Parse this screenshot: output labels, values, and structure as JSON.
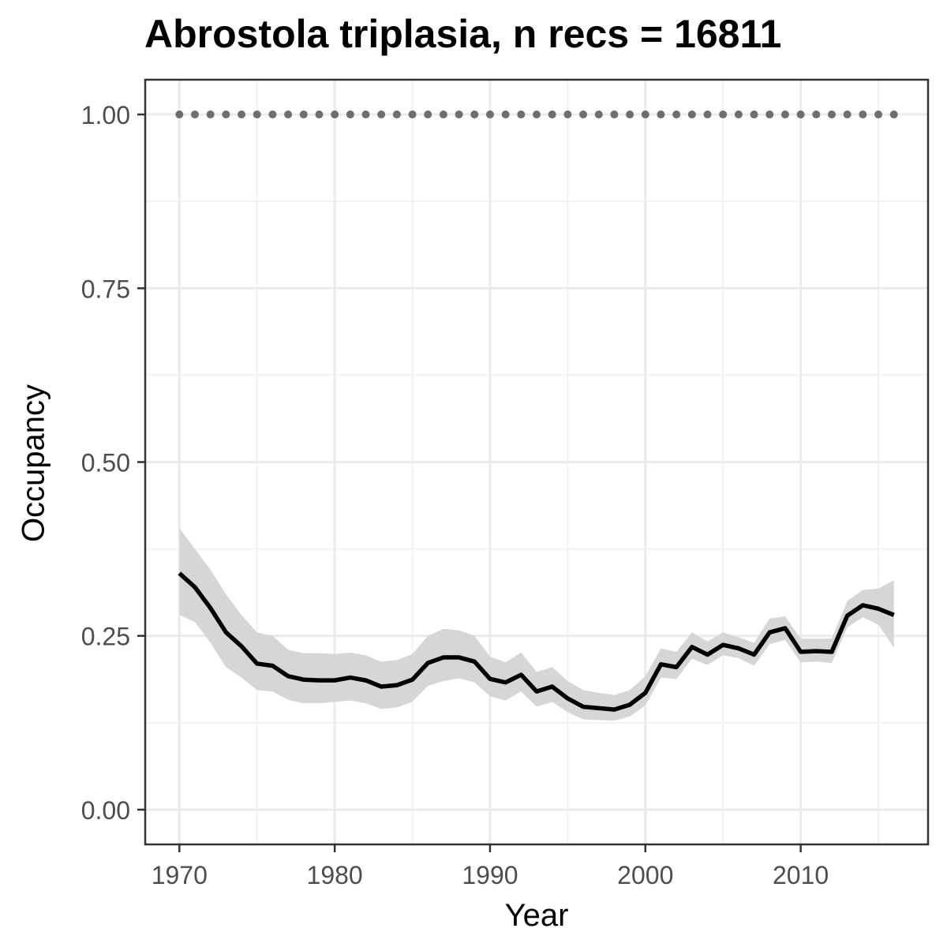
{
  "chart_data": {
    "type": "line",
    "title": "Abrostola triplasia, n recs = 16811",
    "xlabel": "Year",
    "ylabel": "Occupancy",
    "xlim": [
      1967.8,
      2018.2
    ],
    "ylim": [
      -0.05,
      1.05
    ],
    "x_ticks": [
      1970,
      1980,
      1990,
      2000,
      2010
    ],
    "y_ticks": [
      0.0,
      0.25,
      0.5,
      0.75,
      1.0
    ],
    "y_tick_labels": [
      "0.00",
      "0.25",
      "0.50",
      "0.75",
      "1.00"
    ],
    "grid": true,
    "x": [
      1970,
      1971,
      1972,
      1973,
      1974,
      1975,
      1976,
      1977,
      1978,
      1979,
      1980,
      1981,
      1982,
      1983,
      1984,
      1985,
      1986,
      1987,
      1988,
      1989,
      1990,
      1991,
      1992,
      1993,
      1994,
      1995,
      1996,
      1997,
      1998,
      1999,
      2000,
      2001,
      2002,
      2003,
      2004,
      2005,
      2006,
      2007,
      2008,
      2009,
      2010,
      2011,
      2012,
      2013,
      2014,
      2015,
      2016
    ],
    "series": [
      {
        "values": [
          0.34,
          0.32,
          0.29,
          0.255,
          0.235,
          0.21,
          0.207,
          0.192,
          0.187,
          0.186,
          0.186,
          0.19,
          0.186,
          0.177,
          0.179,
          0.187,
          0.211,
          0.219,
          0.219,
          0.213,
          0.188,
          0.183,
          0.194,
          0.17,
          0.177,
          0.16,
          0.148,
          0.146,
          0.144,
          0.151,
          0.168,
          0.209,
          0.205,
          0.234,
          0.223,
          0.237,
          0.232,
          0.223,
          0.255,
          0.261,
          0.227,
          0.228,
          0.227,
          0.279,
          0.294,
          0.289,
          0.28
        ],
        "lower": [
          0.28,
          0.27,
          0.24,
          0.205,
          0.19,
          0.172,
          0.17,
          0.158,
          0.153,
          0.153,
          0.155,
          0.157,
          0.153,
          0.145,
          0.147,
          0.155,
          0.178,
          0.185,
          0.189,
          0.183,
          0.163,
          0.157,
          0.17,
          0.148,
          0.155,
          0.14,
          0.13,
          0.129,
          0.128,
          0.134,
          0.15,
          0.19,
          0.188,
          0.217,
          0.208,
          0.222,
          0.218,
          0.207,
          0.238,
          0.244,
          0.212,
          0.213,
          0.211,
          0.262,
          0.277,
          0.266,
          0.233
        ],
        "upper": [
          0.405,
          0.375,
          0.345,
          0.31,
          0.28,
          0.255,
          0.25,
          0.23,
          0.225,
          0.225,
          0.224,
          0.226,
          0.222,
          0.213,
          0.215,
          0.224,
          0.25,
          0.26,
          0.258,
          0.25,
          0.22,
          0.212,
          0.226,
          0.198,
          0.205,
          0.185,
          0.172,
          0.168,
          0.165,
          0.172,
          0.192,
          0.232,
          0.227,
          0.255,
          0.242,
          0.255,
          0.248,
          0.24,
          0.275,
          0.278,
          0.246,
          0.246,
          0.246,
          0.3,
          0.316,
          0.318,
          0.33
        ],
        "color": "#000000",
        "ribbon_color": "#d6d6d6"
      },
      {
        "values": [
          1,
          1,
          1,
          1,
          1,
          1,
          1,
          1,
          1,
          1,
          1,
          1,
          1,
          1,
          1,
          1,
          1,
          1,
          1,
          1,
          1,
          1,
          1,
          1,
          1,
          1,
          1,
          1,
          1,
          1,
          1,
          1,
          1,
          1,
          1,
          1,
          1,
          1,
          1,
          1,
          1,
          1,
          1,
          1,
          1,
          1,
          1
        ],
        "style": "dotted",
        "color": "#6e6e6e"
      }
    ]
  },
  "colors": {
    "panel_border": "#333333",
    "grid_major": "#ebebeb",
    "grid_minor": "#f2f2f2",
    "tick_label": "#4d4d4d"
  }
}
